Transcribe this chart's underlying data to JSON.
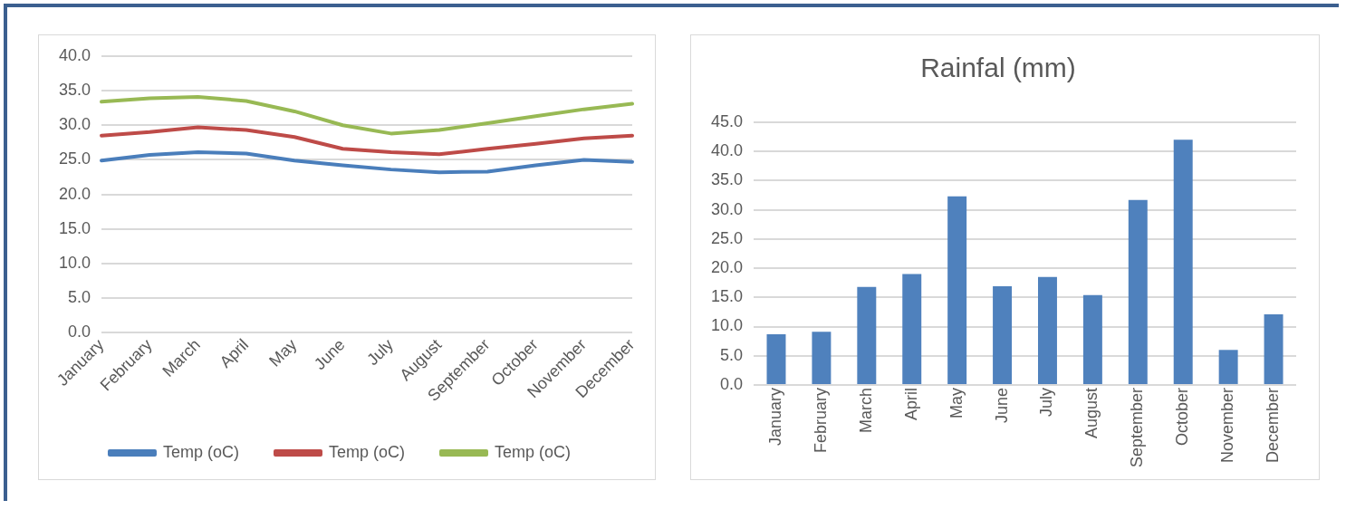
{
  "chart_data": [
    {
      "type": "line",
      "categories": [
        "January",
        "February",
        "March",
        "April",
        "May",
        "June",
        "July",
        "August",
        "September",
        "October",
        "November",
        "December"
      ],
      "series": [
        {
          "name": "Temp (oC)",
          "color": "#4a7ebb",
          "values": [
            24.9,
            25.7,
            26.1,
            25.9,
            24.9,
            24.2,
            23.6,
            23.2,
            23.3,
            24.2,
            25.0,
            24.7
          ]
        },
        {
          "name": "Temp (oC)",
          "color": "#be4b48",
          "values": [
            28.5,
            29.0,
            29.7,
            29.3,
            28.3,
            26.6,
            26.1,
            25.8,
            26.6,
            27.3,
            28.1,
            28.5
          ]
        },
        {
          "name": "Temp (oC)",
          "color": "#98b954",
          "values": [
            33.4,
            33.9,
            34.1,
            33.5,
            32.0,
            30.0,
            28.8,
            29.3,
            30.3,
            31.3,
            32.3,
            33.1
          ]
        }
      ],
      "ylim": [
        0,
        40
      ],
      "yticks": [
        {
          "value": 0,
          "label": "0.0"
        },
        {
          "value": 5,
          "label": "5.0"
        },
        {
          "value": 10,
          "label": "10.0"
        },
        {
          "value": 15,
          "label": "15.0"
        },
        {
          "value": 20,
          "label": "20.0"
        },
        {
          "value": 25,
          "label": "25.0"
        },
        {
          "value": 30,
          "label": "30.0"
        },
        {
          "value": 35,
          "label": "35.0"
        },
        {
          "value": 40,
          "label": "40.0"
        }
      ],
      "grid": "y",
      "legend": "bottom",
      "marker": "none",
      "line_style": "solid"
    },
    {
      "type": "bar",
      "title": "Rainfal (mm)",
      "categories": [
        "January",
        "February",
        "March",
        "April",
        "May",
        "June",
        "July",
        "August",
        "September",
        "October",
        "November",
        "December"
      ],
      "values": [
        8.7,
        9.1,
        16.8,
        19.0,
        32.3,
        16.9,
        18.5,
        15.4,
        31.7,
        42.0,
        6.0,
        12.1
      ],
      "color": "#4f81bd",
      "ylim": [
        0,
        45
      ],
      "yticks": [
        {
          "value": 0,
          "label": "0.0"
        },
        {
          "value": 5,
          "label": "5.0"
        },
        {
          "value": 10,
          "label": "10.0"
        },
        {
          "value": 15,
          "label": "15.0"
        },
        {
          "value": 20,
          "label": "20.0"
        },
        {
          "value": 25,
          "label": "25.0"
        },
        {
          "value": 30,
          "label": "30.0"
        },
        {
          "value": 35,
          "label": "35.0"
        },
        {
          "value": 40,
          "label": "40.0"
        },
        {
          "value": 45,
          "label": "45.0"
        }
      ],
      "grid": "y"
    }
  ]
}
